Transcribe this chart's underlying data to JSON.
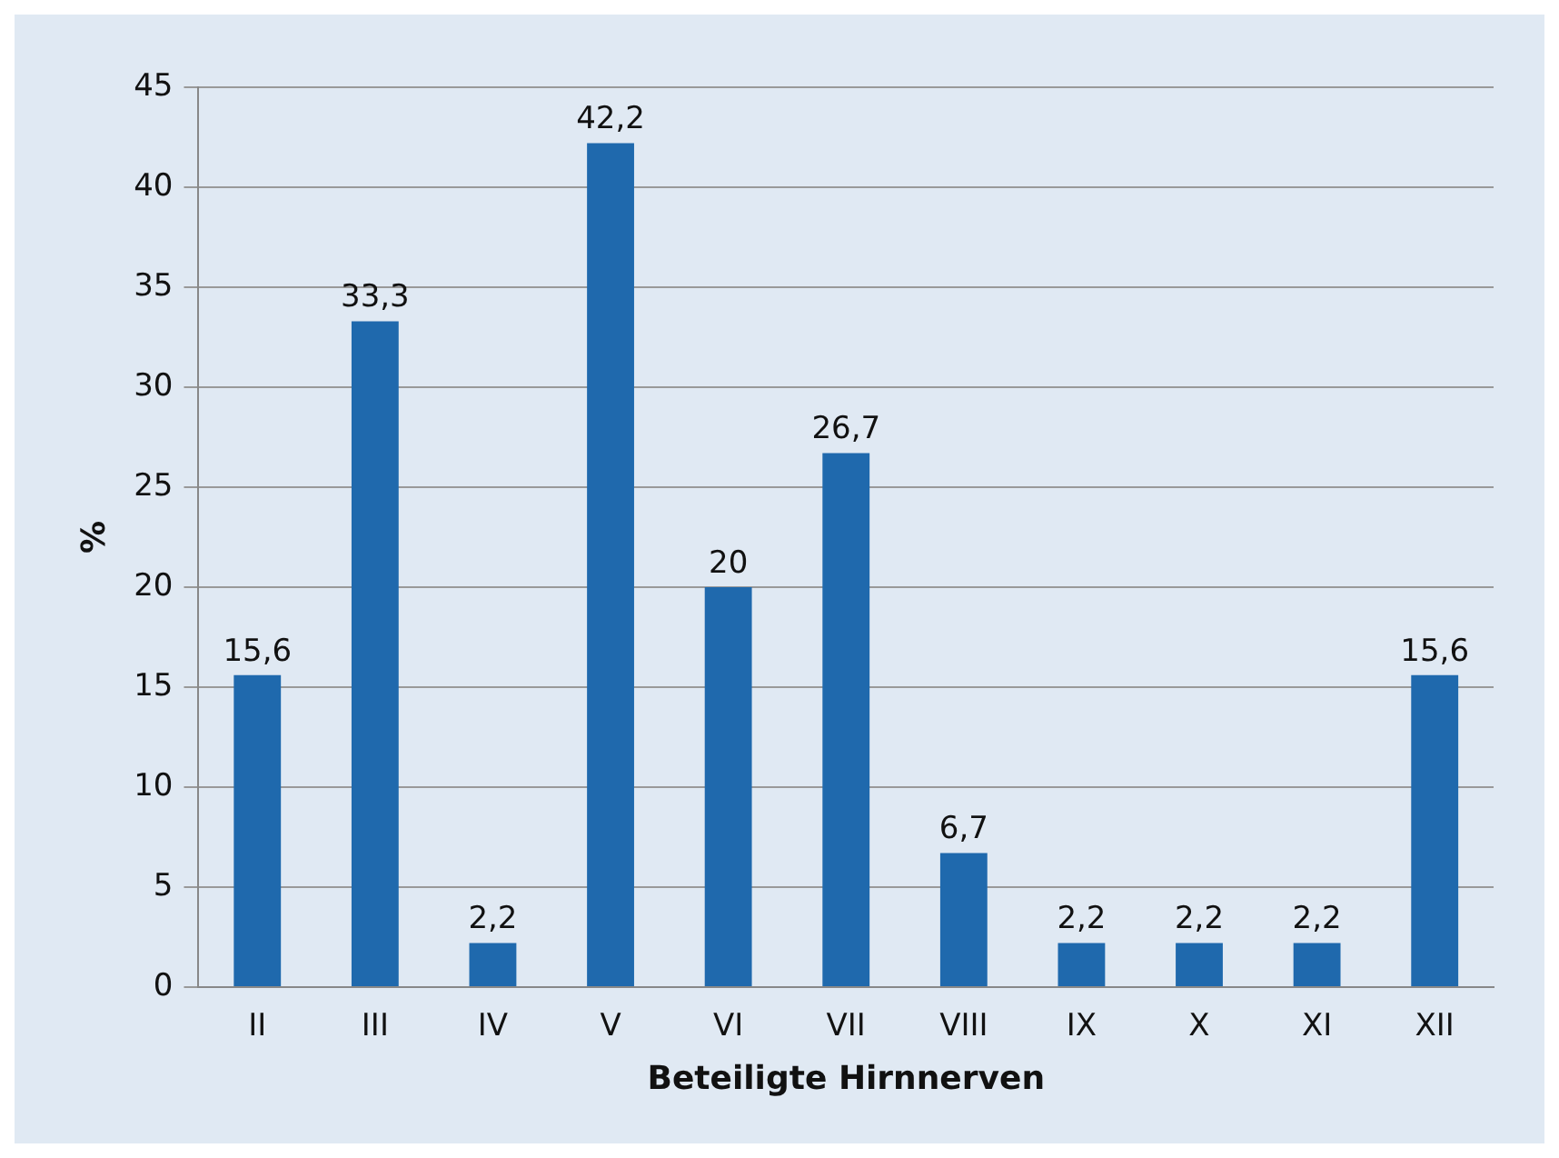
{
  "chart_data": {
    "type": "bar",
    "xlabel": "Beteiligte Hirnnerven",
    "ylabel": "%",
    "categories": [
      "II",
      "III",
      "IV",
      "V",
      "VI",
      "VII",
      "VIII",
      "IX",
      "X",
      "XI",
      "XII"
    ],
    "values": [
      15.6,
      33.3,
      2.2,
      42.2,
      20,
      26.7,
      6.7,
      2.2,
      2.2,
      2.2,
      15.6
    ],
    "value_labels": [
      "15,6",
      "33,3",
      "2,2",
      "42,2",
      "20",
      "26,7",
      "6,7",
      "2,2",
      "2,2",
      "2,2",
      "15,6"
    ],
    "color": "#1f69ad",
    "ylim": [
      0,
      45
    ],
    "yticks": [
      0,
      5,
      10,
      15,
      20,
      25,
      30,
      35,
      40,
      45
    ],
    "grid": "y",
    "legend": false
  }
}
